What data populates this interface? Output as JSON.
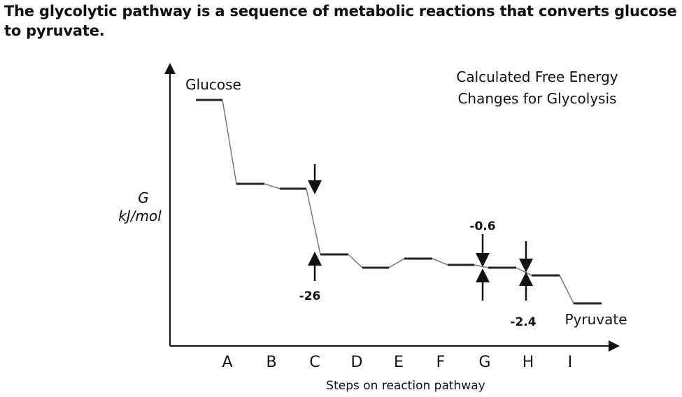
{
  "intro": "The glycolytic pathway is a sequence of metabolic reactions that converts glucose to pyruvate.",
  "title": [
    "Calculated Free Energy",
    "Changes for Glycolysis"
  ],
  "start_label": "Glucose",
  "end_label": "Pyruvate",
  "y_label": [
    "G",
    "kJ/mol"
  ],
  "x_label": "Steps on reaction pathway",
  "categories": [
    "A",
    "B",
    "C",
    "D",
    "E",
    "F",
    "G",
    "H",
    "I"
  ],
  "annotations": [
    "-26",
    "-0.6",
    "-2.4"
  ]
}
